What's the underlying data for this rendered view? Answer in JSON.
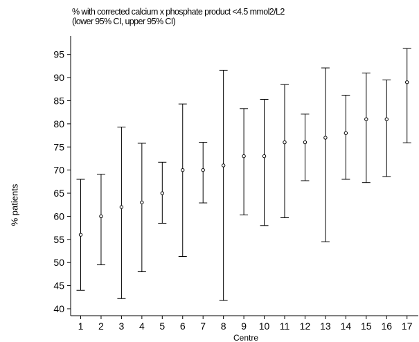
{
  "chart_data": {
    "type": "errorbar",
    "title": "% with corrected calcium x phosphate product <4.5 mmol2/L2",
    "subtitle": "(lower 95% CI, upper 95% CI)",
    "xlabel": "Centre",
    "ylabel": "% patients",
    "categories": [
      "1",
      "2",
      "3",
      "4",
      "5",
      "6",
      "7",
      "8",
      "9",
      "10",
      "11",
      "12",
      "13",
      "14",
      "15",
      "16",
      "17"
    ],
    "values": [
      56,
      60,
      62,
      63,
      65,
      70,
      70,
      71,
      73,
      73,
      76,
      76,
      77,
      78,
      81,
      81,
      89
    ],
    "lower": [
      44,
      49.5,
      42.2,
      48,
      58.5,
      51.3,
      62.9,
      41.8,
      60.3,
      58,
      59.7,
      67.7,
      54.5,
      68,
      67.3,
      68.6,
      75.9
    ],
    "upper": [
      68,
      69.1,
      79.3,
      75.8,
      71.7,
      84.3,
      76,
      91.6,
      83.3,
      85.3,
      88.5,
      82.1,
      92.1,
      86.2,
      91,
      89.5,
      96.3
    ],
    "yticks": [
      40,
      45,
      50,
      55,
      60,
      65,
      70,
      75,
      80,
      85,
      90,
      95
    ],
    "ylim": [
      38.5,
      99
    ],
    "grid": false
  }
}
